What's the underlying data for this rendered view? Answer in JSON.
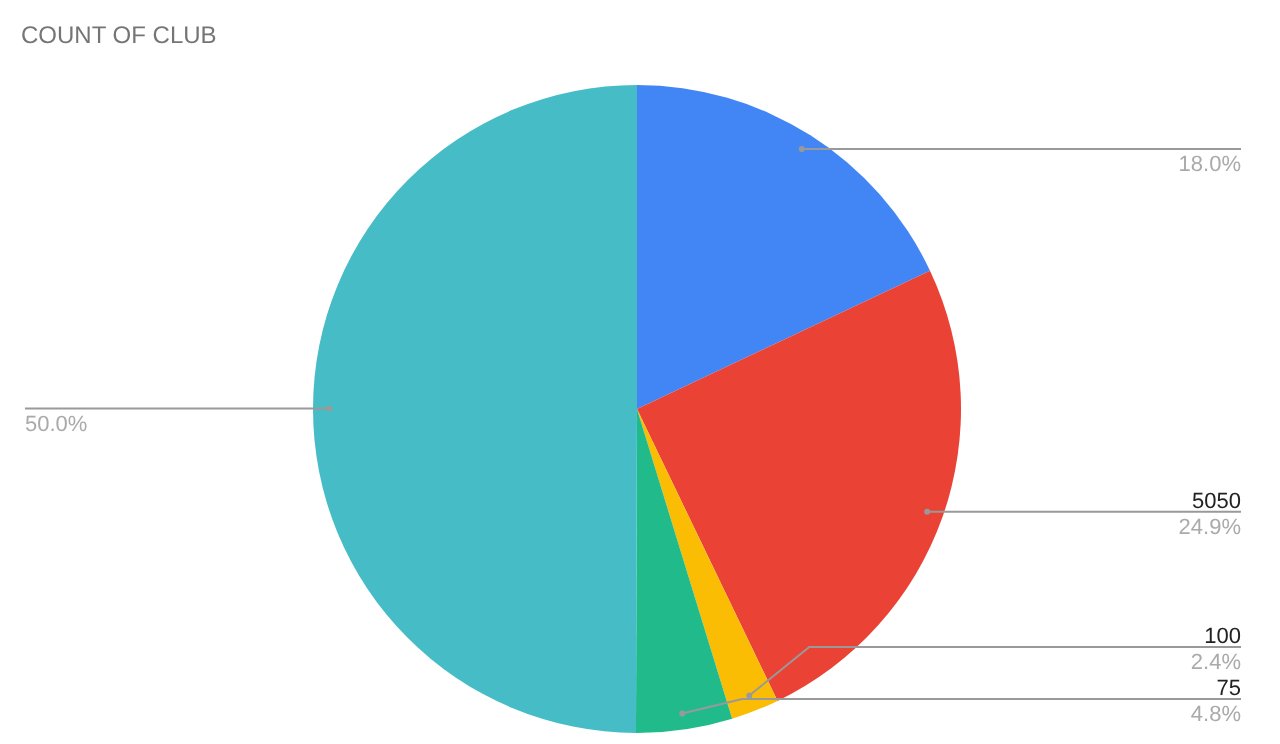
{
  "chart_data": {
    "type": "pie",
    "title": "COUNT OF CLUB",
    "categories": [
      null,
      "5050",
      "100",
      "75",
      null
    ],
    "values": [
      18.0,
      24.9,
      2.4,
      4.8,
      50.0
    ],
    "colors": [
      "#4285f4",
      "#ea4335",
      "#fbbc04",
      "#21bb8b",
      "#46bdc6"
    ],
    "value_labels": [
      "18.0%",
      "24.9%",
      "2.4%",
      "4.8%",
      "50.0%"
    ]
  }
}
